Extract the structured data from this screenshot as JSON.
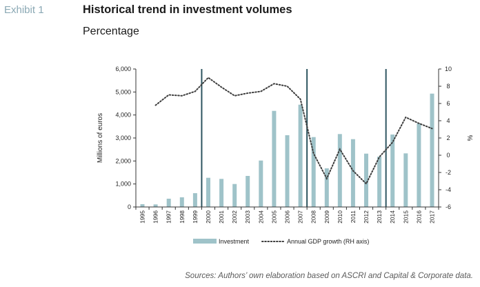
{
  "header": {
    "exhibit": "Exhibit 1",
    "title": "Historical trend in investment volumes",
    "subtitle": "Percentage"
  },
  "source": "Sources: Authors’ own elaboration based on ASCRI and Capital & Corporate data.",
  "colors": {
    "bar": "#9fc3c9",
    "line": "#3c3c3c",
    "vline": "#2e5560",
    "axis": "#333333"
  },
  "chart_data": {
    "type": "bar",
    "categories": [
      "1995",
      "1996",
      "1997",
      "1998",
      "1999",
      "2000",
      "2001",
      "2002",
      "2003",
      "2004",
      "2005",
      "2006",
      "2007",
      "2008",
      "2009",
      "2010",
      "2011",
      "2012",
      "2013",
      "2014",
      "2015",
      "2016",
      "2017"
    ],
    "ylabel": "Millions of euros",
    "y2label": "%",
    "ylim": [
      0,
      6000
    ],
    "y2lim": [
      -6,
      10
    ],
    "yticks": [
      "0",
      "1,000",
      "2,000",
      "3,000",
      "4,000",
      "5,000",
      "6,000"
    ],
    "y2ticks": [
      "-6",
      "-4",
      "-2",
      "0",
      "2",
      "4",
      "6",
      "8",
      "10"
    ],
    "series": [
      {
        "name": "Investment",
        "type": "bar",
        "axis": "left",
        "values": [
          120,
          110,
          360,
          420,
          600,
          1270,
          1220,
          1000,
          1350,
          2020,
          4180,
          3120,
          4450,
          3040,
          1680,
          3170,
          2950,
          2320,
          2190,
          3150,
          2330,
          3640,
          4930
        ]
      },
      {
        "name": "Annual GDP growth (RH axis)",
        "type": "line",
        "style": "dotted",
        "axis": "right",
        "values": [
          null,
          5.8,
          7.0,
          6.9,
          7.4,
          9.0,
          7.9,
          6.9,
          7.2,
          7.4,
          8.3,
          8.0,
          6.5,
          0.2,
          -2.7,
          0.7,
          -1.8,
          -3.3,
          -0.2,
          1.5,
          4.4,
          3.7,
          3.1
        ]
      }
    ],
    "vertical_markers": [
      "1999",
      "2007",
      "2013"
    ],
    "legend_position": "bottom",
    "grid": false
  }
}
